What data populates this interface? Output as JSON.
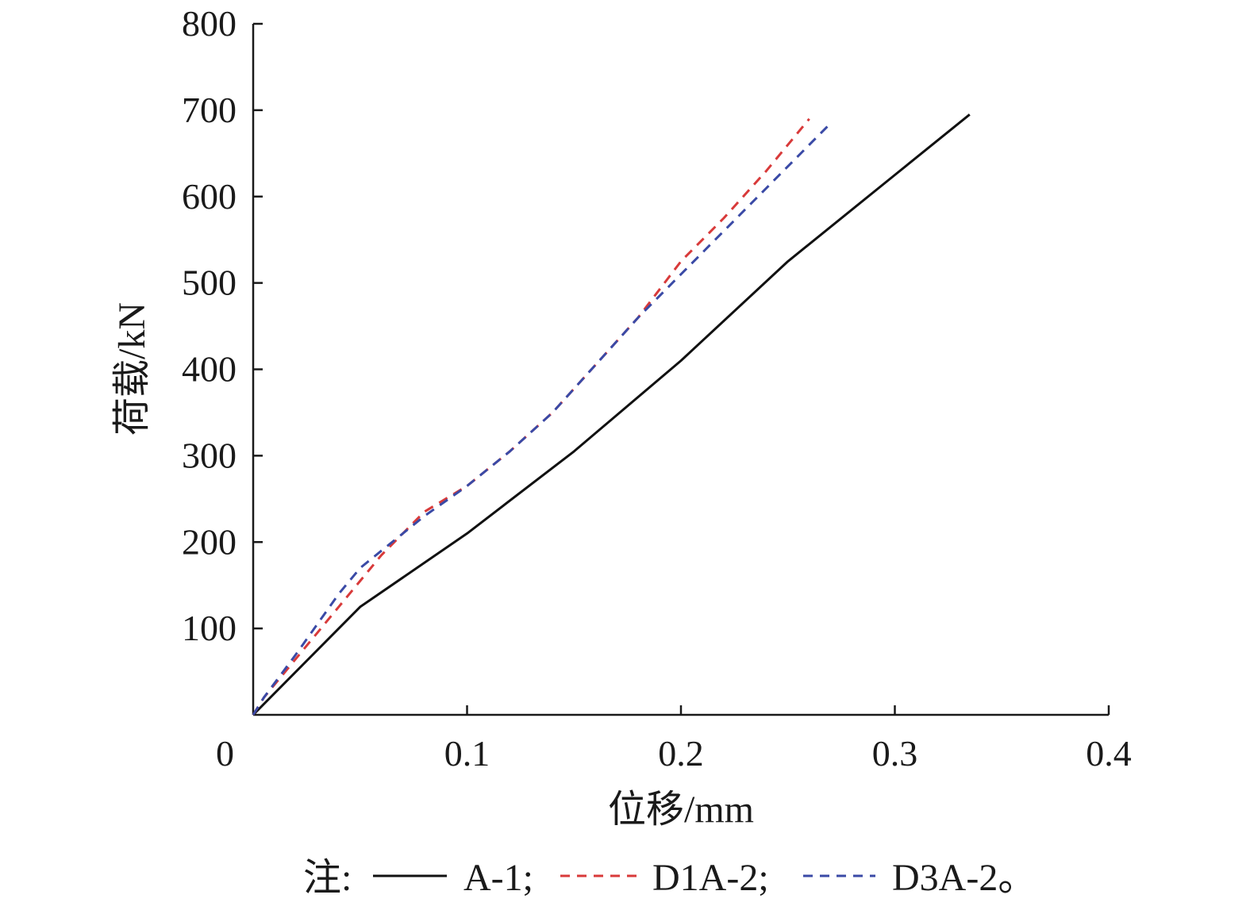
{
  "chart_data": {
    "type": "line",
    "title": "",
    "xlabel": "位移/mm",
    "ylabel": "荷载/kN",
    "xlim": [
      0,
      0.4
    ],
    "ylim": [
      0,
      800
    ],
    "x_ticks": [
      0,
      0.1,
      0.2,
      0.3,
      0.4
    ],
    "x_tick_labels": [
      "0",
      "0.1",
      "0.2",
      "0.3",
      "0.4"
    ],
    "y_ticks": [
      100,
      200,
      300,
      400,
      500,
      600,
      700,
      800
    ],
    "y_tick_labels": [
      "100",
      "200",
      "300",
      "400",
      "500",
      "600",
      "700",
      "800"
    ],
    "grid": false,
    "legend": {
      "placement": "bottom",
      "prefix": "注:",
      "suffix": "。",
      "separator": ";"
    },
    "series": [
      {
        "name": "A-1",
        "color": "#111111",
        "style": "solid",
        "points": [
          [
            0,
            0
          ],
          [
            0.02,
            50
          ],
          [
            0.05,
            125
          ],
          [
            0.1,
            210
          ],
          [
            0.15,
            305
          ],
          [
            0.2,
            410
          ],
          [
            0.25,
            525
          ],
          [
            0.3,
            625
          ],
          [
            0.335,
            695
          ]
        ]
      },
      {
        "name": "D1A-2",
        "color": "#d83a3a",
        "style": "dashed",
        "points": [
          [
            0,
            0
          ],
          [
            0.005,
            20
          ],
          [
            0.02,
            65
          ],
          [
            0.04,
            125
          ],
          [
            0.06,
            185
          ],
          [
            0.08,
            235
          ],
          [
            0.1,
            265
          ],
          [
            0.12,
            305
          ],
          [
            0.14,
            350
          ],
          [
            0.16,
            405
          ],
          [
            0.18,
            460
          ],
          [
            0.2,
            525
          ],
          [
            0.22,
            575
          ],
          [
            0.24,
            630
          ],
          [
            0.26,
            690
          ]
        ]
      },
      {
        "name": "D3A-2",
        "color": "#3a4aa6",
        "style": "dashed",
        "points": [
          [
            0,
            0
          ],
          [
            0.005,
            20
          ],
          [
            0.02,
            70
          ],
          [
            0.04,
            140
          ],
          [
            0.05,
            170
          ],
          [
            0.06,
            190
          ],
          [
            0.08,
            230
          ],
          [
            0.1,
            265
          ],
          [
            0.12,
            305
          ],
          [
            0.14,
            350
          ],
          [
            0.16,
            405
          ],
          [
            0.18,
            460
          ],
          [
            0.2,
            510
          ],
          [
            0.22,
            560
          ],
          [
            0.24,
            610
          ],
          [
            0.27,
            685
          ]
        ]
      }
    ]
  }
}
